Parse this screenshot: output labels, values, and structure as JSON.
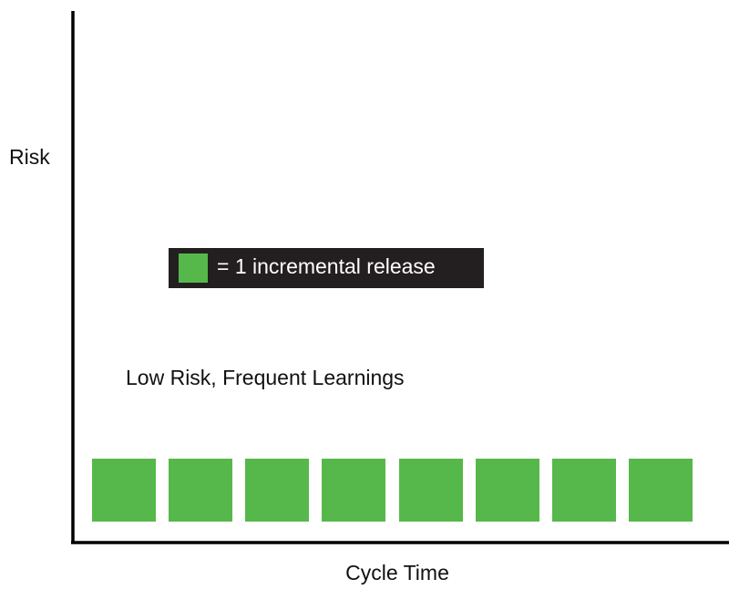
{
  "axes": {
    "y_label": "Risk",
    "x_label": "Cycle Time"
  },
  "legend": {
    "label": "= 1 incremental release"
  },
  "annotation": "Low Risk, Frequent Learnings"
}
